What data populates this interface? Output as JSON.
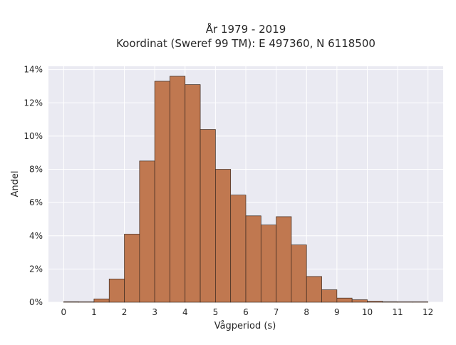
{
  "chart_data": {
    "type": "bar",
    "title": "År 1979 - 2019",
    "subtitle": "Koordinat (Sweref 99 TM): E 497360, N 6118500",
    "xlabel": "Vågperiod (s)",
    "ylabel": "Andel",
    "xlim": [
      -0.5,
      12.5
    ],
    "ylim": [
      0,
      14.2
    ],
    "x_ticks": [
      0,
      1,
      2,
      3,
      4,
      5,
      6,
      7,
      8,
      9,
      10,
      11,
      12
    ],
    "y_ticks": [
      0,
      2,
      4,
      6,
      8,
      10,
      12,
      14
    ],
    "y_tick_labels": [
      "0%",
      "2%",
      "4%",
      "6%",
      "8%",
      "10%",
      "12%",
      "14%"
    ],
    "bin_width": 0.5,
    "bins": [
      {
        "start": 0.0,
        "value": 0.03
      },
      {
        "start": 0.5,
        "value": 0.0
      },
      {
        "start": 1.0,
        "value": 0.2
      },
      {
        "start": 1.5,
        "value": 1.4
      },
      {
        "start": 2.0,
        "value": 4.1
      },
      {
        "start": 2.5,
        "value": 8.5
      },
      {
        "start": 3.0,
        "value": 13.3
      },
      {
        "start": 3.5,
        "value": 13.6
      },
      {
        "start": 4.0,
        "value": 13.1
      },
      {
        "start": 4.5,
        "value": 10.4
      },
      {
        "start": 5.0,
        "value": 8.0
      },
      {
        "start": 5.5,
        "value": 6.45
      },
      {
        "start": 6.0,
        "value": 5.2
      },
      {
        "start": 6.5,
        "value": 4.65
      },
      {
        "start": 7.0,
        "value": 5.15
      },
      {
        "start": 7.5,
        "value": 3.45
      },
      {
        "start": 8.0,
        "value": 1.55
      },
      {
        "start": 8.5,
        "value": 0.75
      },
      {
        "start": 9.0,
        "value": 0.25
      },
      {
        "start": 9.5,
        "value": 0.15
      },
      {
        "start": 10.0,
        "value": 0.06
      },
      {
        "start": 10.5,
        "value": 0.03
      },
      {
        "start": 11.0,
        "value": 0.01
      },
      {
        "start": 11.5,
        "value": 0.005
      }
    ],
    "grid": true,
    "colors": {
      "bar_fill": "#c07850",
      "bar_edge": "#3b2a20",
      "plot_bg": "#eaeaf2",
      "grid": "#ffffff"
    }
  }
}
